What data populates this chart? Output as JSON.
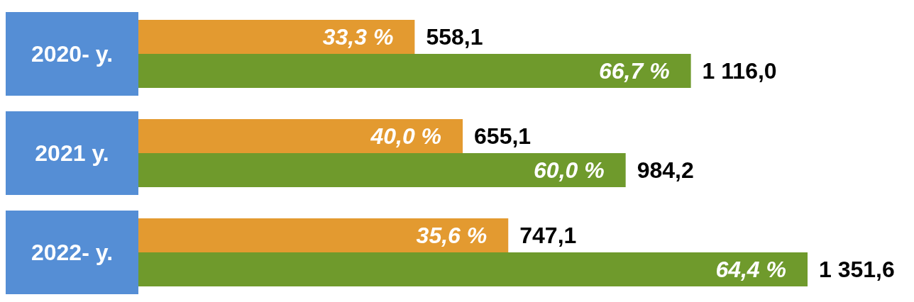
{
  "chart_data": {
    "type": "bar",
    "orientation": "horizontal",
    "tick_labels": "y",
    "categories": [
      "2020- y.",
      "2021 y.",
      "2022- y."
    ],
    "series": [
      {
        "color": "#e39a30",
        "values": [
          558.1,
          655.1,
          747.1
        ],
        "value_labels": [
          "558,1",
          "655,1",
          "747,1"
        ]
      },
      {
        "color": "#6f9a2c",
        "values": [
          1116.0,
          984.2,
          1351.6
        ],
        "value_labels": [
          "1 116,0",
          "984,2",
          "1 351,6"
        ]
      }
    ],
    "annotations": [
      {
        "text": "33,3 %",
        "x": 558.1,
        "y": "2020- y."
      },
      {
        "text": "66,7 %",
        "x": 1116.0,
        "y": "2020- y."
      },
      {
        "text": "40,0 %",
        "x": 655.1,
        "y": "2021 y."
      },
      {
        "text": "60,0 %",
        "x": 984.2,
        "y": "2021 y."
      },
      {
        "text": "35,6 %",
        "x": 747.1,
        "y": "2022- y."
      },
      {
        "text": "64,4 %",
        "x": 1351.6,
        "y": "2022- y."
      }
    ]
  }
}
